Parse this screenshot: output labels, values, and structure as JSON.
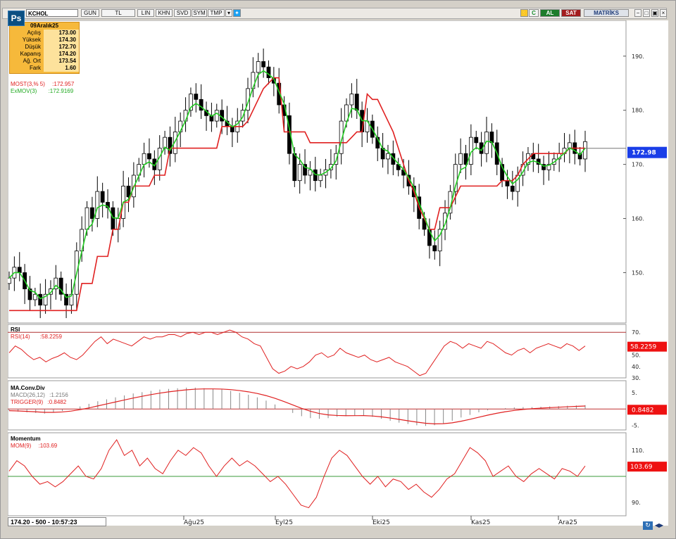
{
  "toolbar": {
    "logo": "Ps",
    "symbol": "KCHOL",
    "buttons": [
      "GUN",
      "TL",
      "LIN",
      "KHN",
      "SVD",
      "SYM",
      "TMP"
    ],
    "right_buttons": {
      "c": "C",
      "al": "AL",
      "sat": "SAT",
      "matriks": "MATRİKS"
    }
  },
  "ohlc_box": {
    "date": "09Aralık25",
    "rows": [
      {
        "label": "Açılış",
        "value": "173.00"
      },
      {
        "label": "Yüksek",
        "value": "174.30"
      },
      {
        "label": "Düşük",
        "value": "172.70"
      },
      {
        "label": "Kapanış",
        "value": "174.20"
      },
      {
        "label": "Ağ. Ort",
        "value": "173.54"
      },
      {
        "label": "Fark",
        "value": "1.60"
      }
    ]
  },
  "indicators": {
    "most": "MOST(3,% 5)",
    "most_value": ":172.957",
    "exmov": "ExMOV(3)",
    "exmov_value": ":172.9169",
    "rsi_title": "RSI",
    "rsi_name": "RSI(14)",
    "rsi_value": ":58.2259",
    "macd_title": "MA.Conv.Div",
    "macd_name": "MACD(26,12)",
    "macd_value": ":1.2156",
    "trigger_name": "TRIGGER(9)",
    "trigger_value": ":0.8482",
    "mom_title": "Momentum",
    "mom_name": "MOM(9)",
    "mom_value": ":103.69"
  },
  "right_axis": {
    "price_ticks": [
      "190.",
      "180.",
      "170.",
      "160.",
      "150."
    ],
    "price_tag": "172.98",
    "rsi_ticks": [
      "70.",
      "50.",
      "40.",
      "30."
    ],
    "rsi_tag": "58.2259",
    "macd_ticks": [
      "5.",
      "-5."
    ],
    "macd_tag": "0.8482",
    "mom_ticks": [
      "110.",
      "90."
    ],
    "mom_tag": "103.69"
  },
  "x_axis": {
    "labels": [
      "Ağu25",
      "Eyl25",
      "Eki25",
      "Kas25",
      "Ara25"
    ]
  },
  "status": {
    "text": "174.20 - 500 - 10:57:23"
  },
  "colors": {
    "most": "#e02020",
    "exmov": "#22cc22",
    "rsi": "#e02020",
    "macd": "#e02020",
    "tag": "#ee1111",
    "price_tag": "#1a3ee8"
  },
  "chart_data": {
    "type": "candlestick",
    "x_labels": [
      "Ağu25",
      "Eyl25",
      "Eki25",
      "Kas25",
      "Ara25"
    ],
    "last_price": 172.98,
    "ylim": [
      142,
      194
    ],
    "closes": [
      149,
      151,
      150,
      147,
      145,
      146,
      144,
      146,
      147,
      149,
      146,
      144,
      146,
      154,
      158,
      162,
      160,
      165,
      163,
      162,
      158,
      160,
      166,
      164,
      168,
      170,
      172,
      171,
      169,
      173,
      175,
      172,
      176,
      178,
      180,
      183,
      182,
      180,
      179,
      178,
      180,
      178,
      177,
      176,
      178,
      180,
      184,
      187,
      189,
      188,
      186,
      185,
      181,
      179,
      172,
      167,
      170,
      168,
      169,
      167,
      168,
      169,
      170,
      172,
      178,
      181,
      183,
      180,
      176,
      178,
      175,
      173,
      171,
      172,
      170,
      169,
      168,
      166,
      164,
      160,
      158,
      155,
      154,
      158,
      161,
      165,
      170,
      172,
      170,
      175,
      174,
      172,
      176,
      174,
      170,
      167,
      166,
      165,
      168,
      170,
      172,
      171,
      170,
      169,
      170,
      171,
      172,
      173,
      174,
      172,
      171,
      174.2
    ],
    "most": [
      143,
      143,
      143,
      143,
      143,
      143,
      143,
      143,
      143,
      143,
      143,
      143,
      143,
      143,
      148,
      148,
      148,
      153,
      153,
      153,
      158,
      158,
      163,
      163,
      166,
      166,
      166,
      166,
      168,
      168,
      168,
      173,
      173,
      173,
      173,
      173,
      173,
      173,
      173,
      173,
      173,
      177,
      177,
      177,
      177,
      177,
      178,
      180,
      182,
      184,
      185,
      186,
      186,
      176,
      176,
      176,
      176,
      176,
      174,
      174,
      174,
      174,
      174,
      174,
      174,
      174,
      175,
      176,
      176,
      183,
      182,
      182,
      180,
      178,
      176,
      173,
      170,
      167,
      165,
      162,
      160,
      158,
      158,
      162,
      162,
      162,
      164,
      166,
      166,
      166,
      166,
      166,
      166,
      166,
      166,
      167,
      167,
      167,
      168,
      170,
      171,
      172,
      172,
      172,
      172,
      172,
      172,
      172,
      173,
      173,
      173,
      173
    ],
    "rsi": {
      "values": [
        52,
        58,
        55,
        50,
        46,
        48,
        44,
        47,
        49,
        52,
        48,
        46,
        50,
        56,
        62,
        66,
        60,
        64,
        62,
        60,
        58,
        62,
        66,
        64,
        66,
        66,
        68,
        68,
        66,
        69,
        70,
        68,
        70,
        70,
        68,
        70,
        72,
        70,
        66,
        64,
        60,
        58,
        48,
        38,
        34,
        36,
        40,
        38,
        40,
        44,
        50,
        52,
        48,
        50,
        56,
        52,
        50,
        48,
        50,
        46,
        44,
        46,
        48,
        44,
        42,
        40,
        36,
        32,
        34,
        42,
        50,
        58,
        62,
        60,
        56,
        60,
        58,
        56,
        62,
        60,
        56,
        52,
        50,
        54,
        56,
        52,
        56,
        58,
        60,
        58,
        56,
        60,
        58,
        54,
        58
      ],
      "ylim": [
        30,
        72
      ]
    },
    "macd": {
      "values": [
        -0.5,
        -0.8,
        -1.0,
        -1.2,
        -1.4,
        -1.0,
        -0.6,
        0,
        0.8,
        1.6,
        2.4,
        3.0,
        3.6,
        4.2,
        4.8,
        5.2,
        5.6,
        6.0,
        6.2,
        6.4,
        6.6,
        6.6,
        6.4,
        6.2,
        6.0,
        5.6,
        5.0,
        4.4,
        3.6,
        2.6,
        1.4,
        0,
        -1.2,
        -2.2,
        -2.8,
        -3.0,
        -2.8,
        -2.4,
        -2.2,
        -2.0,
        -2.0,
        -2.4,
        -3.0,
        -3.6,
        -4.2,
        -4.6,
        -5.0,
        -5.2,
        -5.0,
        -4.4,
        -3.6,
        -2.6,
        -1.8,
        -1.0,
        -0.4,
        0,
        0.3,
        0.5,
        0.6,
        0.6,
        0.7,
        0.8,
        0.9,
        1.0,
        1.1,
        1.2
      ],
      "ylim": [
        -6,
        7
      ]
    },
    "momentum": {
      "values": [
        102,
        106,
        104,
        100,
        97,
        98,
        96,
        98,
        101,
        104,
        100,
        99,
        103,
        110,
        114,
        108,
        110,
        104,
        107,
        103,
        101,
        106,
        110,
        108,
        111,
        109,
        104,
        100,
        104,
        107,
        104,
        106,
        104,
        101,
        98,
        100,
        97,
        93,
        89,
        88,
        92,
        100,
        107,
        110,
        108,
        104,
        100,
        97,
        100,
        96,
        99,
        98,
        95,
        97,
        94,
        92,
        95,
        99,
        101,
        106,
        111,
        109,
        106,
        100,
        102,
        104,
        100,
        98,
        101,
        103,
        101,
        99,
        103,
        102,
        100,
        104
      ],
      "ylim": [
        86,
        114
      ]
    }
  }
}
